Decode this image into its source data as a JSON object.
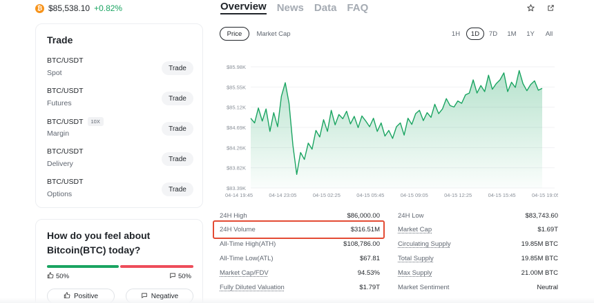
{
  "header": {
    "coin_symbol": "₿",
    "price": "$85,538.10",
    "change": "+0.82%",
    "tabs": [
      "Overview",
      "News",
      "Data",
      "FAQ"
    ],
    "active_tab": "Overview"
  },
  "trade": {
    "title": "Trade",
    "button_label": "Trade",
    "rows": [
      {
        "pair": "BTC/USDT",
        "type": "Spot",
        "badge": ""
      },
      {
        "pair": "BTC/USDT",
        "type": "Futures",
        "badge": ""
      },
      {
        "pair": "BTC/USDT",
        "type": "Margin",
        "badge": "10X"
      },
      {
        "pair": "BTC/USDT",
        "type": "Delivery",
        "badge": ""
      },
      {
        "pair": "BTC/USDT",
        "type": "Options",
        "badge": ""
      }
    ]
  },
  "sentiment": {
    "question": "How do you feel about Bitcoin(BTC) today?",
    "positive_pct": "50%",
    "negative_pct": "50%",
    "positive_label": "Positive",
    "negative_label": "Negative",
    "positive_fraction": 0.5
  },
  "chart_controls": {
    "modes": [
      "Price",
      "Market Cap"
    ],
    "active_mode": "Price",
    "ranges": [
      "1H",
      "1D",
      "7D",
      "1M",
      "1Y",
      "All"
    ],
    "active_range": "1D"
  },
  "chart_data": {
    "type": "area",
    "title": "",
    "xlabel": "",
    "ylabel": "",
    "y_ticks": [
      "$85.98K",
      "$85.55K",
      "$85.12K",
      "$84.69K",
      "$84.26K",
      "$83.82K",
      "$83.39K"
    ],
    "x_ticks": [
      "04-14 19:45",
      "04-14 23:05",
      "04-15 02:25",
      "04-15 05:45",
      "04-15 09:05",
      "04-15 12:25",
      "04-15 15:45",
      "04-15 19:05"
    ],
    "ylim": [
      83390,
      85980
    ],
    "x": [
      "04-14 19:45",
      "04-14 20:10",
      "04-14 20:30",
      "04-14 20:50",
      "04-14 21:10",
      "04-14 21:30",
      "04-14 21:50",
      "04-14 22:10",
      "04-14 22:25",
      "04-14 22:35",
      "04-14 22:45",
      "04-14 23:00",
      "04-14 23:15",
      "04-14 23:30",
      "04-14 23:45",
      "04-15 00:00",
      "04-15 00:15",
      "04-15 00:30",
      "04-15 00:45",
      "04-15 01:00",
      "04-15 01:20",
      "04-15 01:40",
      "04-15 02:00",
      "04-15 02:25",
      "04-15 02:50",
      "04-15 03:10",
      "04-15 03:30",
      "04-15 03:50",
      "04-15 04:10",
      "04-15 04:30",
      "04-15 04:50",
      "04-15 05:10",
      "04-15 05:30",
      "04-15 05:45",
      "04-15 06:10",
      "04-15 06:30",
      "04-15 06:50",
      "04-15 07:10",
      "04-15 07:30",
      "04-15 07:50",
      "04-15 08:10",
      "04-15 08:30",
      "04-15 08:50",
      "04-15 09:05",
      "04-15 09:30",
      "04-15 09:50",
      "04-15 10:10",
      "04-15 10:30",
      "04-15 10:50",
      "04-15 11:10",
      "04-15 11:30",
      "04-15 11:50",
      "04-15 12:10",
      "04-15 12:25",
      "04-15 12:50",
      "04-15 13:10",
      "04-15 13:30",
      "04-15 13:50",
      "04-15 14:10",
      "04-15 14:30",
      "04-15 14:50",
      "04-15 15:10",
      "04-15 15:30",
      "04-15 15:45",
      "04-15 16:10",
      "04-15 16:30",
      "04-15 16:50",
      "04-15 17:10",
      "04-15 17:30",
      "04-15 17:50",
      "04-15 18:10",
      "04-15 18:30",
      "04-15 18:50",
      "04-15 19:05",
      "04-15 19:30",
      "04-15 19:50",
      "04-15 20:10"
    ],
    "values": [
      84880,
      84780,
      85100,
      84820,
      85080,
      84600,
      85000,
      84700,
      85350,
      85640,
      85200,
      84300,
      83680,
      84150,
      84000,
      84350,
      84220,
      84620,
      84480,
      84850,
      84600,
      85050,
      84740,
      84960,
      84870,
      85030,
      84760,
      84920,
      84680,
      84930,
      84820,
      84700,
      84880,
      84600,
      84780,
      84500,
      84620,
      84450,
      84700,
      84780,
      84520,
      84880,
      84750,
      84980,
      85050,
      84830,
      85000,
      84900,
      85180,
      84980,
      85080,
      85300,
      85150,
      85120,
      85250,
      85200,
      85380,
      85420,
      85700,
      85420,
      85580,
      85450,
      85800,
      85500,
      85620,
      85700,
      85850,
      85450,
      85650,
      85540,
      85900,
      85620,
      85470,
      85600,
      85680,
      85480,
      85520
    ]
  },
  "stats": {
    "left": [
      {
        "label": "24H High",
        "value": "$86,000.00",
        "link": false
      },
      {
        "label": "24H Volume",
        "value": "$316.51M",
        "link": false
      },
      {
        "label": "All-Time High(ATH)",
        "value": "$108,786.00",
        "link": false
      },
      {
        "label": "All-Time Low(ATL)",
        "value": "$67.81",
        "link": false
      },
      {
        "label": "Market Cap/FDV",
        "value": "94.53%",
        "link": true
      },
      {
        "label": "Fully Diluted Valuation",
        "value": "$1.79T",
        "link": true
      }
    ],
    "right": [
      {
        "label": "24H Low",
        "value": "$83,743.60",
        "link": false
      },
      {
        "label": "Market Cap",
        "value": "$1.69T",
        "link": true
      },
      {
        "label": "Circulating Supply",
        "value": "19.85M BTC",
        "link": true
      },
      {
        "label": "Total Supply",
        "value": "19.85M BTC",
        "link": true
      },
      {
        "label": "Max Supply",
        "value": "21.00M BTC",
        "link": true
      },
      {
        "label": "Market Sentiment",
        "value": "Neutral",
        "link": false
      }
    ]
  },
  "colors": {
    "accent_green": "#1aa461",
    "accent_red": "#ee4d5a",
    "highlight": "#e34a33"
  }
}
